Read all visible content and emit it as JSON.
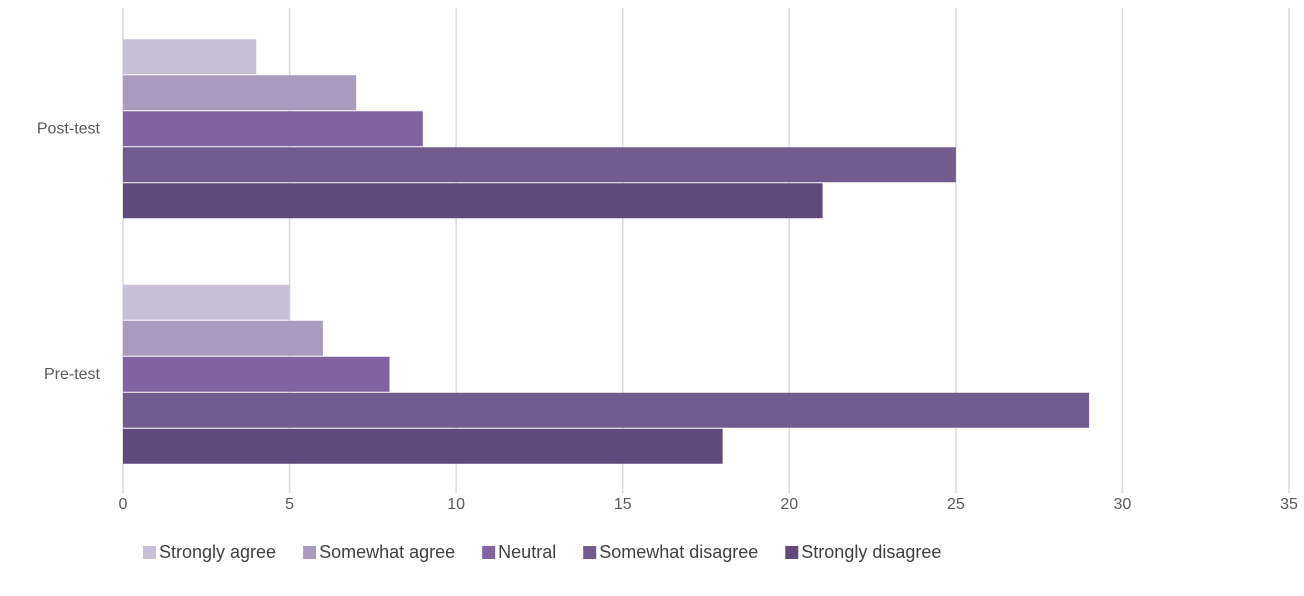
{
  "chart_data": {
    "type": "hbar",
    "categories": [
      "Post-test",
      "Pre-test"
    ],
    "series": [
      {
        "name": "Strongly agree",
        "color": "#c8c0d8",
        "values": [
          4,
          5
        ]
      },
      {
        "name": "Somewhat agree",
        "color": "#a99bc0",
        "values": [
          7,
          6
        ]
      },
      {
        "name": "Neutral",
        "color": "#8064a2",
        "values": [
          9,
          8
        ]
      },
      {
        "name": "Somewhat disagree",
        "color": "#725b8f",
        "values": [
          25,
          29
        ]
      },
      {
        "name": "Strongly disagree",
        "color": "#604a7b",
        "values": [
          21,
          18
        ]
      }
    ],
    "xlim": [
      0,
      35
    ],
    "xticks": [
      0,
      5,
      10,
      15,
      20,
      25,
      30,
      35
    ],
    "grid": true,
    "legend": "bottom"
  }
}
